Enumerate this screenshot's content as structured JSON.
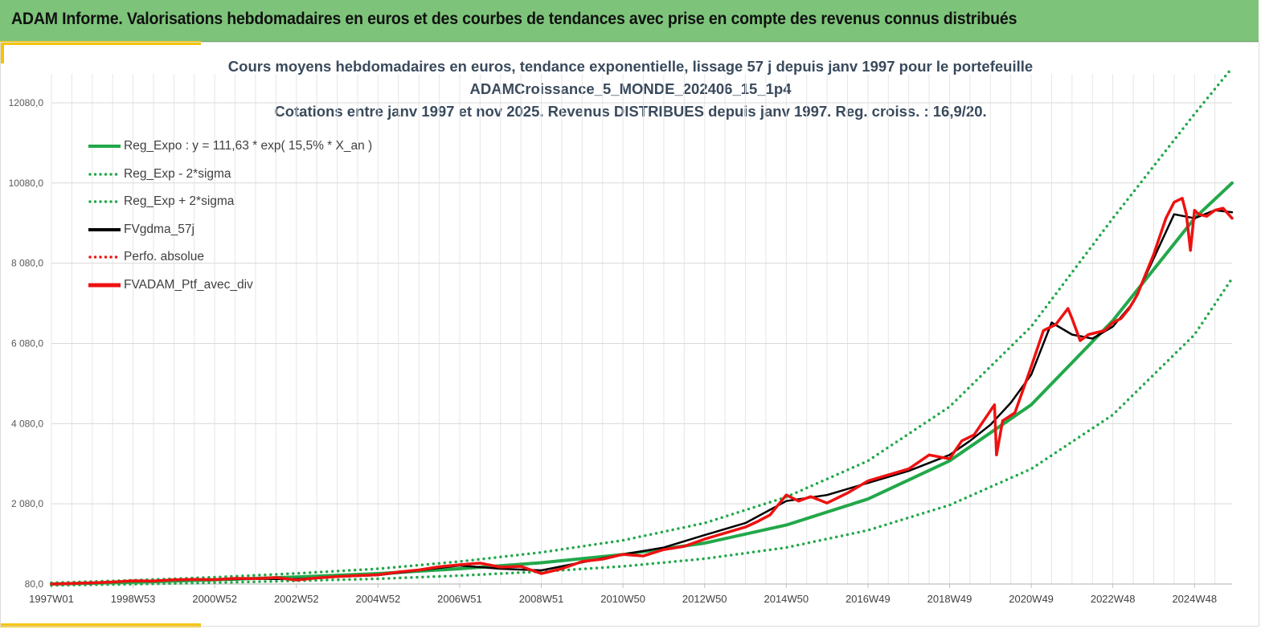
{
  "banner": {
    "title": "ADAM Informe. Valorisations hebdomadaires en euros et des courbes de tendances avec prise en compte des revenus connus distribués"
  },
  "colors": {
    "banner_bg": "#7dc47a",
    "accent": "#f5c400",
    "trend": "#22a84a",
    "smooth": "#000000",
    "portfolio": "#ee1111",
    "title_text": "#3a4a5c"
  },
  "chart_data": {
    "type": "line",
    "title_lines": [
      "Cours moyens hebdomadaires  en euros, tendance exponentielle, lissage 57 j depuis janv 1997 pour le portefeuille",
      "ADAMCroissance_5_MONDE_202406_15_1p4",
      "Cotations  entre janv 1997 et nov  2025. Revenus DISTRIBUES depuis janv 1997. Reg. croiss. : 16,9/20."
    ],
    "x_range_years": [
      1997.0,
      2025.92
    ],
    "y_range": [
      80,
      12800
    ],
    "y_ticks": [
      "80,0",
      "2 080,0",
      "4 080,0",
      "6 080,0",
      "8 080,0",
      "10080,0",
      "12080,0"
    ],
    "y_tick_values": [
      80,
      2080,
      4080,
      6080,
      8080,
      10080,
      12080
    ],
    "x_ticks": [
      "1997W01",
      "1998W53",
      "2000W52",
      "2002W52",
      "2004W52",
      "2006W51",
      "2008W51",
      "2010W50",
      "2012W50",
      "2014W50",
      "2016W49",
      "2018W49",
      "2020W49",
      "2022W48",
      "2024W48"
    ],
    "x_tick_years": [
      1997.0,
      1999.0,
      2001.0,
      2003.0,
      2005.0,
      2007.0,
      2009.0,
      2011.0,
      2013.0,
      2015.0,
      2017.0,
      2019.0,
      2021.0,
      2023.0,
      2025.0
    ],
    "grid": "vertical and horizontal",
    "legend_position": "top-left",
    "legend": [
      {
        "name": "Reg_Expo : y = 111,63 * exp( 15,5% *  X_an )",
        "color": "#22a84a",
        "style": "solid"
      },
      {
        "name": "Reg_Exp - 2*sigma",
        "color": "#22a84a",
        "style": "dotted"
      },
      {
        "name": "Reg_Exp + 2*sigma",
        "color": "#22a84a",
        "style": "dotted"
      },
      {
        "name": "FVgdma_57j",
        "color": "#000000",
        "style": "solid"
      },
      {
        "name": "Perfo. absolue",
        "color": "#ee1111",
        "style": "dotted"
      },
      {
        "name": "FVADAM_Ptf_avec_div",
        "color": "#ee1111",
        "style": "solid"
      }
    ],
    "series": [
      {
        "name": "Reg_Expo : y = 111,63 * exp( 15,5% *  X_an )",
        "x": [
          1997,
          1999,
          2001,
          2003,
          2005,
          2007,
          2009,
          2011,
          2013,
          2015,
          2017,
          2019,
          2021,
          2023,
          2025,
          2025.92
        ],
        "y": [
          80,
          125,
          185,
          255,
          340,
          460,
          610,
          815,
          1100,
          1550,
          2200,
          3150,
          4550,
          6650,
          9200,
          10080
        ]
      },
      {
        "name": "Reg_Exp - 2*sigma",
        "x": [
          1997,
          1999,
          2001,
          2003,
          2005,
          2007,
          2009,
          2011,
          2013,
          2015,
          2017,
          2019,
          2021,
          2023,
          2025,
          2025.92
        ],
        "y": [
          45,
          75,
          115,
          160,
          210,
          290,
          390,
          520,
          710,
          990,
          1420,
          2050,
          2950,
          4300,
          6300,
          7700
        ]
      },
      {
        "name": "Reg_Exp + 2*sigma",
        "x": [
          1997,
          1999,
          2001,
          2003,
          2005,
          2007,
          2009,
          2011,
          2013,
          2015,
          2017,
          2019,
          2021,
          2023,
          2025,
          2025.92
        ],
        "y": [
          110,
          175,
          250,
          345,
          460,
          640,
          870,
          1170,
          1600,
          2250,
          3150,
          4500,
          6500,
          9200,
          11800,
          12950
        ]
      },
      {
        "name": "FVgdma_57j",
        "x": [
          1997,
          1998,
          1999,
          2000,
          2001,
          2002,
          2003,
          2004,
          2005,
          2006,
          2007,
          2008,
          2009,
          2010,
          2011,
          2012,
          2013,
          2014,
          2015,
          2016,
          2017,
          2018,
          2019,
          2019.5,
          2020,
          2020.5,
          2021,
          2021.5,
          2022,
          2022.5,
          2023,
          2023.5,
          2024,
          2024.5,
          2025,
          2025.5,
          2025.92
        ],
        "y": [
          80,
          100,
          150,
          180,
          190,
          210,
          200,
          260,
          300,
          420,
          540,
          460,
          420,
          620,
          820,
          990,
          1300,
          1600,
          2150,
          2300,
          2600,
          2900,
          3300,
          3650,
          4050,
          4600,
          5300,
          6600,
          6300,
          6200,
          6500,
          7100,
          8200,
          9300,
          9200,
          9400,
          9350
        ]
      },
      {
        "name": "Perfo. absolue",
        "x": [
          1997,
          1999,
          2001,
          2003,
          2005,
          2007,
          2009,
          2011,
          2013,
          2015,
          2017,
          2019,
          2021,
          2023,
          2025,
          2025.92
        ],
        "y": [
          80,
          150,
          190,
          200,
          300,
          540,
          420,
          820,
          1300,
          2150,
          2600,
          3300,
          5300,
          6500,
          9200,
          9350
        ]
      },
      {
        "name": "FVADAM_Ptf_avec_div",
        "x": [
          1997,
          1997.5,
          1998,
          1998.5,
          1999,
          1999.5,
          2000,
          2000.5,
          2001,
          2001.5,
          2002,
          2002.5,
          2003,
          2003.5,
          2004,
          2004.5,
          2005,
          2005.5,
          2006,
          2006.5,
          2007,
          2007.5,
          2008,
          2008.5,
          2009,
          2009.5,
          2010,
          2010.5,
          2011,
          2011.5,
          2012,
          2012.5,
          2013,
          2013.5,
          2014,
          2014.3,
          2014.6,
          2015,
          2015.3,
          2015.6,
          2016,
          2016.5,
          2017,
          2017.5,
          2018,
          2018.5,
          2019,
          2019.3,
          2019.6,
          2020,
          2020.1,
          2020.15,
          2020.3,
          2020.6,
          2021,
          2021.3,
          2021.6,
          2021.9,
          2022,
          2022.2,
          2022.4,
          2022.6,
          2022.8,
          2023,
          2023.2,
          2023.4,
          2023.6,
          2023.8,
          2024,
          2024.3,
          2024.5,
          2024.7,
          2024.8,
          2024.9,
          2025,
          2025.1,
          2025.3,
          2025.5,
          2025.7,
          2025.92
        ],
        "y": [
          80,
          95,
          110,
          130,
          160,
          155,
          185,
          195,
          190,
          220,
          215,
          240,
          180,
          230,
          265,
          290,
          310,
          380,
          430,
          510,
          560,
          600,
          500,
          520,
          340,
          460,
          640,
          700,
          820,
          780,
          940,
          1020,
          1200,
          1350,
          1500,
          1640,
          1800,
          2300,
          2150,
          2260,
          2100,
          2350,
          2650,
          2800,
          2950,
          3300,
          3200,
          3650,
          3800,
          4400,
          4550,
          3300,
          4150,
          4350,
          5500,
          6400,
          6550,
          6950,
          6700,
          6150,
          6300,
          6350,
          6400,
          6600,
          6700,
          6950,
          7300,
          7800,
          8300,
          9200,
          9600,
          9700,
          9300,
          8400,
          9400,
          9300,
          9250,
          9400,
          9450,
          9200
        ]
      }
    ]
  }
}
